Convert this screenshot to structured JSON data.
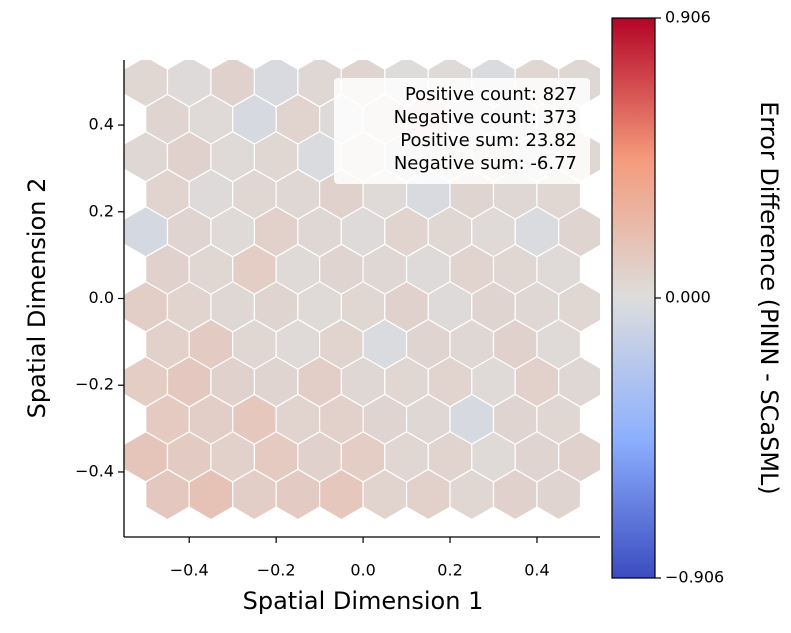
{
  "chart_data": {
    "type": "hexbin",
    "xlabel": "Spatial Dimension 1",
    "ylabel": "Spatial Dimension 2",
    "xlim": [
      -0.55,
      0.545
    ],
    "ylim": [
      -0.55,
      0.55
    ],
    "xticks": [
      {
        "value": -0.4,
        "label": "−0.4"
      },
      {
        "value": -0.2,
        "label": "−0.2"
      },
      {
        "value": 0,
        "label": "0.0"
      },
      0.2,
      0.4
    ],
    "yticks": [
      {
        "value": -0.4,
        "label": "−0.4"
      },
      {
        "value": -0.2,
        "label": "−0.2"
      },
      {
        "value": 0,
        "label": "0.0"
      },
      0.2,
      0.4
    ],
    "hex_width": 0.1,
    "rows": [
      {
        "y": 0.5,
        "x": [
          -0.5,
          -0.4,
          -0.3,
          -0.2,
          -0.1,
          0,
          0.1,
          0.2,
          0.3,
          0.4,
          0.5
        ],
        "values": [
          0.05,
          0.02,
          0.08,
          -0.03,
          0.04,
          0.06,
          0.01,
          0.03,
          -0.02,
          0.05,
          0.04
        ]
      },
      {
        "y": 0.413,
        "x": [
          -0.45,
          -0.35,
          -0.25,
          -0.15,
          -0.05,
          0.05,
          0.15,
          0.25,
          0.35,
          0.45
        ],
        "values": [
          0.06,
          0.03,
          -0.04,
          0.07,
          0.02,
          0.05,
          0.09,
          0.02,
          0.04,
          0.03
        ]
      },
      {
        "y": 0.327,
        "x": [
          -0.5,
          -0.4,
          -0.3,
          -0.2,
          -0.1,
          0,
          0.1,
          0.2,
          0.3,
          0.4,
          0.5
        ],
        "values": [
          0.04,
          0.08,
          0.03,
          0.05,
          -0.02,
          0.06,
          0.04,
          0.03,
          0.07,
          0.02,
          0.05
        ]
      },
      {
        "y": 0.24,
        "x": [
          -0.45,
          -0.35,
          -0.25,
          -0.15,
          -0.05,
          0.05,
          0.15,
          0.25,
          0.35,
          0.45
        ],
        "values": [
          0.07,
          0.02,
          0.05,
          0.04,
          0.08,
          0.03,
          -0.03,
          0.06,
          0.04,
          0.05
        ]
      },
      {
        "y": 0.154,
        "x": [
          -0.5,
          -0.4,
          -0.3,
          -0.2,
          -0.1,
          0,
          0.1,
          0.2,
          0.3,
          0.4,
          0.5
        ],
        "values": [
          -0.05,
          0.06,
          0.03,
          0.09,
          0.04,
          0.02,
          0.07,
          0.05,
          0.03,
          -0.02,
          0.06
        ]
      },
      {
        "y": 0.067,
        "x": [
          -0.45,
          -0.35,
          -0.25,
          -0.15,
          -0.05,
          0.05,
          0.15,
          0.25,
          0.35,
          0.45
        ],
        "values": [
          0.08,
          0.05,
          0.11,
          0.03,
          0.06,
          0.04,
          0.02,
          0.07,
          0.05,
          0.03
        ]
      },
      {
        "y": -0.019,
        "x": [
          -0.5,
          -0.4,
          -0.3,
          -0.2,
          -0.1,
          0,
          0.1,
          0.2,
          0.3,
          0.4,
          0.5
        ],
        "values": [
          0.1,
          0.07,
          0.04,
          0.06,
          0.03,
          0.05,
          0.08,
          0.02,
          0.06,
          0.04,
          0.05
        ]
      },
      {
        "y": -0.106,
        "x": [
          -0.45,
          -0.35,
          -0.25,
          -0.15,
          -0.05,
          0.05,
          0.15,
          0.25,
          0.35,
          0.45
        ],
        "values": [
          0.09,
          0.12,
          0.05,
          0.03,
          0.07,
          -0.02,
          0.06,
          0.04,
          0.08,
          0.03
        ]
      },
      {
        "y": -0.192,
        "x": [
          -0.5,
          -0.4,
          -0.3,
          -0.2,
          -0.1,
          0,
          0.1,
          0.2,
          0.3,
          0.4,
          0.5
        ],
        "values": [
          0.11,
          0.14,
          0.08,
          0.06,
          0.1,
          0.04,
          0.05,
          0.07,
          0.03,
          0.09,
          0.04
        ]
      },
      {
        "y": -0.279,
        "x": [
          -0.45,
          -0.35,
          -0.25,
          -0.15,
          -0.05,
          0.05,
          0.15,
          0.25,
          0.35,
          0.45
        ],
        "values": [
          0.13,
          0.1,
          0.15,
          0.07,
          0.09,
          0.06,
          0.04,
          -0.04,
          0.06,
          0.05
        ]
      },
      {
        "y": -0.365,
        "x": [
          -0.5,
          -0.4,
          -0.3,
          -0.2,
          -0.1,
          0,
          0.1,
          0.2,
          0.3,
          0.4,
          0.5
        ],
        "values": [
          0.16,
          0.12,
          0.09,
          0.13,
          0.08,
          0.11,
          0.05,
          0.07,
          0.03,
          0.06,
          0.08
        ]
      },
      {
        "y": -0.452,
        "x": [
          -0.45,
          -0.35,
          -0.25,
          -0.15,
          -0.05,
          0.05,
          0.15,
          0.25,
          0.35,
          0.45
        ],
        "values": [
          0.14,
          0.18,
          0.1,
          0.12,
          0.15,
          0.07,
          0.09,
          0.05,
          0.08,
          0.06
        ]
      }
    ],
    "colorbar": {
      "label": "Error Difference (PINN - SCaSML)",
      "clim": [
        -0.906,
        0.906
      ],
      "ticks": [
        {
          "value": -0.906,
          "label": "−0.906"
        },
        {
          "value": 0,
          "label": "0.000"
        },
        0.906
      ],
      "colors": [
        "#3b4cc0",
        "#8db0fe",
        "#dddddd",
        "#f49a7b",
        "#b40426"
      ]
    },
    "annotations": [
      "Positive count: 827",
      "Negative count: 373",
      "Positive sum: 23.82",
      "Negative sum: -6.77"
    ]
  }
}
